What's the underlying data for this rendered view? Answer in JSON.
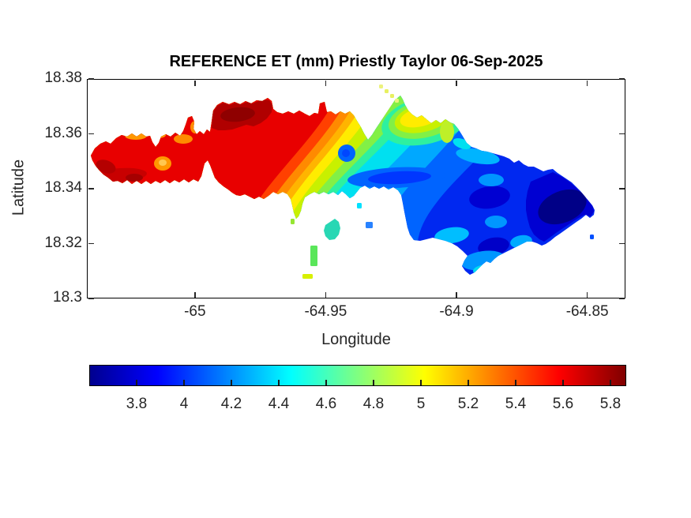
{
  "figure": {
    "title": "REFERENCE ET (mm) Priestly Taylor 06-Sep-2025",
    "xlabel": "Longitude",
    "ylabel": "Latitude",
    "background": "#ffffff",
    "text_color": "#262626",
    "box_color": "#000000"
  },
  "chart_data": {
    "type": "heatmap",
    "subtype": "filled-contour-island-map",
    "title": "REFERENCE ET (mm) Priestly Taylor 06-Sep-2025",
    "xlabel": "Longitude",
    "ylabel": "Latitude",
    "units": "mm",
    "xlim": [
      -65.0413,
      -64.8354
    ],
    "ylim": [
      18.3,
      18.38
    ],
    "x_ticks": [
      -65,
      -64.95,
      -64.9,
      -64.85
    ],
    "y_ticks": [
      18.38,
      18.36,
      18.34,
      18.32,
      18.3
    ],
    "grid": false,
    "colorbar": {
      "orientation": "horizontal",
      "position": "bottom",
      "min": 3.6,
      "max": 5.8667,
      "ticks": [
        3.8,
        4,
        4.2,
        4.4,
        4.6,
        4.8,
        5,
        5.2,
        5.4,
        5.6,
        5.8
      ],
      "colormap": "jet",
      "stops": [
        [
          0,
          "#00008F"
        ],
        [
          12.5,
          "#0000FF"
        ],
        [
          37.5,
          "#00FFFF"
        ],
        [
          50,
          "#80FF80"
        ],
        [
          62.5,
          "#FFFF00"
        ],
        [
          87.5,
          "#FF0000"
        ],
        [
          100,
          "#800000"
        ]
      ]
    },
    "sampled_values": [
      {
        "lon": -65.03,
        "lat": 18.352,
        "et_mm": 5.7
      },
      {
        "lon": -65.0,
        "lat": 18.354,
        "et_mm": 5.5
      },
      {
        "lon": -64.975,
        "lat": 18.362,
        "et_mm": 5.8
      },
      {
        "lon": -64.955,
        "lat": 18.352,
        "et_mm": 5.1
      },
      {
        "lon": -64.945,
        "lat": 18.345,
        "et_mm": 4.9
      },
      {
        "lon": -64.93,
        "lat": 18.342,
        "et_mm": 4.6
      },
      {
        "lon": -64.917,
        "lat": 18.347,
        "et_mm": 4.4
      },
      {
        "lon": -64.905,
        "lat": 18.353,
        "et_mm": 4.8
      },
      {
        "lon": -64.9,
        "lat": 18.34,
        "et_mm": 4.1
      },
      {
        "lon": -64.88,
        "lat": 18.335,
        "et_mm": 3.9
      },
      {
        "lon": -64.858,
        "lat": 18.333,
        "et_mm": 3.7
      }
    ]
  }
}
